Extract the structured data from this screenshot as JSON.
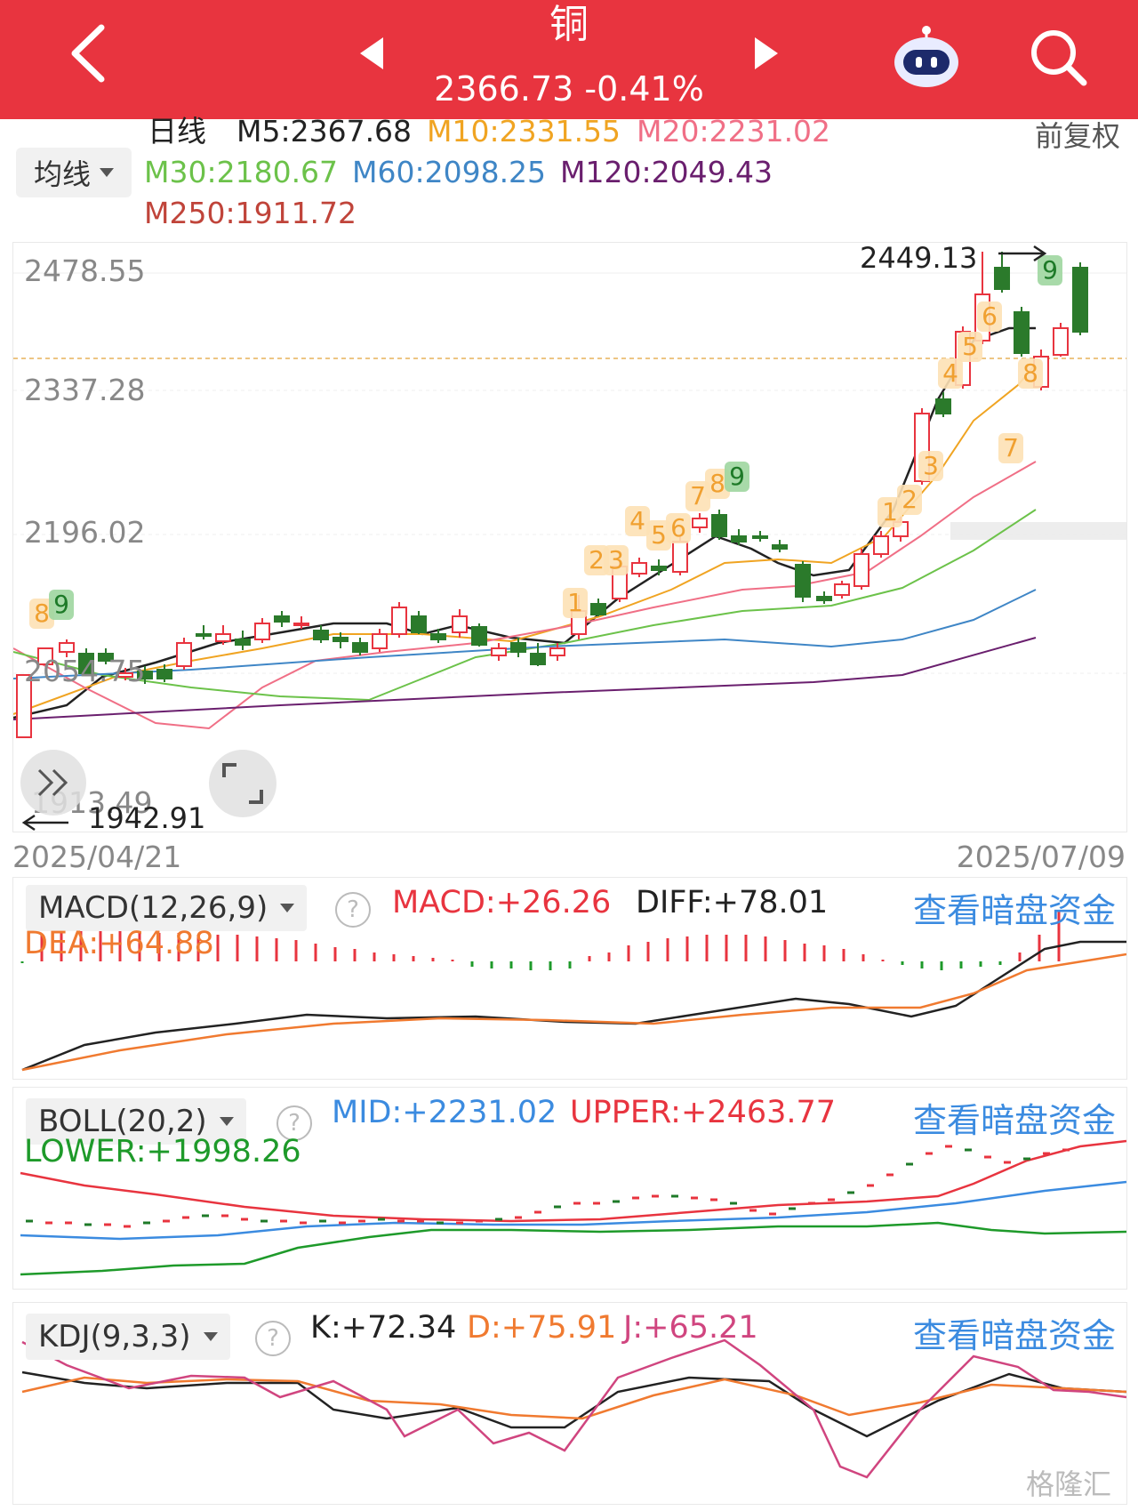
{
  "header": {
    "back_icon": "chevron-left-icon",
    "prev_icon": "triangle-left-icon",
    "next_icon": "triangle-right-icon",
    "title": "铜",
    "price": "2366.73",
    "change": "-0.41%",
    "assistant_icon": "robot-icon",
    "search_icon": "search-icon"
  },
  "ma_legend": {
    "period": "日线",
    "select_label": "均线",
    "restore": "前复权",
    "items": [
      {
        "label": "M5:2367.68",
        "color": "#222222"
      },
      {
        "label": "M10:2331.55",
        "color": "#f0a422"
      },
      {
        "label": "M20:2231.02",
        "color": "#f06f86"
      },
      {
        "label": "M30:2180.67",
        "color": "#6cc24a"
      },
      {
        "label": "M60:2098.25",
        "color": "#3f86c6"
      },
      {
        "label": "M120:2049.43",
        "color": "#6a1f6e"
      },
      {
        "label": "M250:1911.72",
        "color": "#c0443a"
      }
    ]
  },
  "main_chart": {
    "y_ticks": [
      "2478.55",
      "2337.28",
      "2196.02",
      "2054.75",
      "1913.49"
    ],
    "high_marker": "2449.13",
    "low_marker": "1942.91",
    "start_date": "2025/04/21",
    "end_date": "2025/07/09",
    "collapse_icon": "double-chevron-icon",
    "fullscreen_icon": "fullscreen-icon",
    "td_labels": [
      "8",
      "9",
      "1",
      "2",
      "3",
      "4",
      "5",
      "6",
      "7",
      "8",
      "9",
      "1",
      "2",
      "3",
      "4",
      "5",
      "6",
      "7",
      "8",
      "9"
    ]
  },
  "macd": {
    "select_label": "MACD(12,26,9)",
    "macd": "MACD:+26.26",
    "diff": "DIFF:+78.01",
    "dea": "DEA:+64.88",
    "link": "查看暗盘资金"
  },
  "boll": {
    "select_label": "BOLL(20,2)",
    "mid": "MID:+2231.02",
    "upper": "UPPER:+2463.77",
    "lower": "LOWER:+1998.26",
    "link": "查看暗盘资金"
  },
  "kdj": {
    "select_label": "KDJ(9,3,3)",
    "k": "K:+72.34",
    "d": "D:+75.91",
    "j": "J:+65.21",
    "link": "查看暗盘资金"
  },
  "watermark": "格隆汇",
  "colors": {
    "header_bg": "#e8343f",
    "up": "#e8343f",
    "down": "#2b7a2b",
    "link": "#3b8be0"
  }
}
